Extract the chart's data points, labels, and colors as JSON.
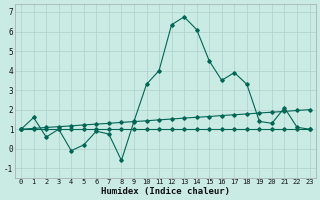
{
  "xlabel": "Humidex (Indice chaleur)",
  "xlim_min": -0.5,
  "xlim_max": 23.5,
  "ylim_min": -1.5,
  "ylim_max": 7.4,
  "yticks": [
    -1,
    0,
    1,
    2,
    3,
    4,
    5,
    6,
    7
  ],
  "xticks": [
    0,
    1,
    2,
    3,
    4,
    5,
    6,
    7,
    8,
    9,
    10,
    11,
    12,
    13,
    14,
    15,
    16,
    17,
    18,
    19,
    20,
    21,
    22,
    23
  ],
  "bg_color": "#caeae4",
  "grid_color": "#b0d0cc",
  "line_color": "#006655",
  "curve_x": [
    0,
    1,
    2,
    3,
    4,
    5,
    6,
    7,
    8,
    9,
    10,
    11,
    12,
    13,
    14,
    15,
    16,
    17,
    18,
    19,
    20,
    21,
    22,
    23
  ],
  "curve_y": [
    1.0,
    1.6,
    0.6,
    1.0,
    -0.1,
    0.2,
    0.9,
    0.75,
    -0.6,
    1.4,
    3.3,
    4.0,
    6.35,
    6.75,
    6.1,
    4.5,
    3.5,
    3.9,
    3.3,
    1.4,
    1.3,
    2.1,
    1.1,
    1.0
  ],
  "flat_x": [
    0,
    1,
    2,
    3,
    4,
    5,
    6,
    7,
    8,
    9,
    10,
    11,
    12,
    13,
    14,
    15,
    16,
    17,
    18,
    19,
    20,
    21,
    22,
    23
  ],
  "flat_y": [
    1.0,
    1.0,
    1.0,
    1.0,
    1.0,
    1.0,
    1.0,
    1.0,
    1.0,
    1.0,
    1.0,
    1.0,
    1.0,
    1.0,
    1.0,
    1.0,
    1.0,
    1.0,
    1.0,
    1.0,
    1.0,
    1.0,
    1.0,
    1.0
  ],
  "trend_x": [
    0,
    1,
    2,
    3,
    4,
    5,
    6,
    7,
    8,
    9,
    10,
    11,
    12,
    13,
    14,
    15,
    16,
    17,
    18,
    19,
    20,
    21,
    22,
    23
  ],
  "trend_y": [
    1.0,
    1.04,
    1.09,
    1.13,
    1.17,
    1.22,
    1.26,
    1.3,
    1.35,
    1.39,
    1.43,
    1.48,
    1.52,
    1.57,
    1.61,
    1.65,
    1.7,
    1.74,
    1.78,
    1.83,
    1.87,
    1.91,
    1.96,
    2.0
  ]
}
